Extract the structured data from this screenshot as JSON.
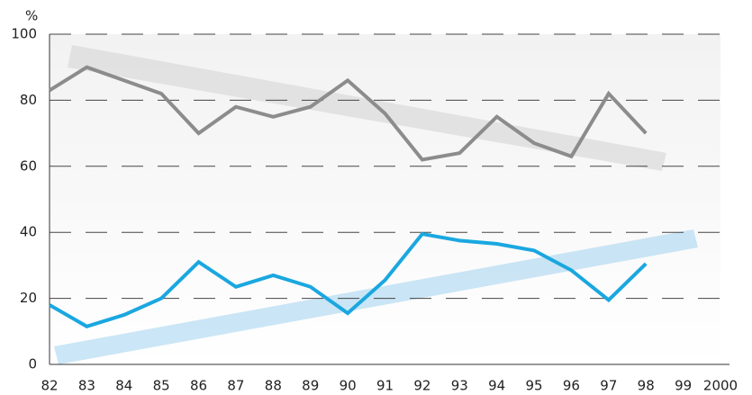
{
  "chart_data": {
    "type": "line",
    "y_label": "%",
    "categories": [
      "82",
      "83",
      "84",
      "85",
      "86",
      "87",
      "88",
      "89",
      "90",
      "91",
      "92",
      "93",
      "94",
      "95",
      "96",
      "97",
      "98",
      "99",
      "2000"
    ],
    "series": [
      {
        "color": "#8c8c8c",
        "values": [
          83,
          90,
          86,
          82,
          70,
          78,
          75,
          78,
          86,
          76,
          62,
          64,
          75,
          67,
          63,
          82,
          70,
          null,
          null
        ]
      },
      {
        "color": "#1aa7e0",
        "values": [
          18,
          11.5,
          15,
          20,
          31,
          23.5,
          27,
          23.5,
          15.5,
          25.5,
          39.5,
          37.5,
          36.5,
          34.5,
          28.5,
          19.5,
          30.5,
          null,
          null
        ]
      }
    ],
    "ylim": [
      0,
      100
    ],
    "yticks": [
      0,
      20,
      40,
      60,
      80,
      100
    ],
    "grid": true
  }
}
